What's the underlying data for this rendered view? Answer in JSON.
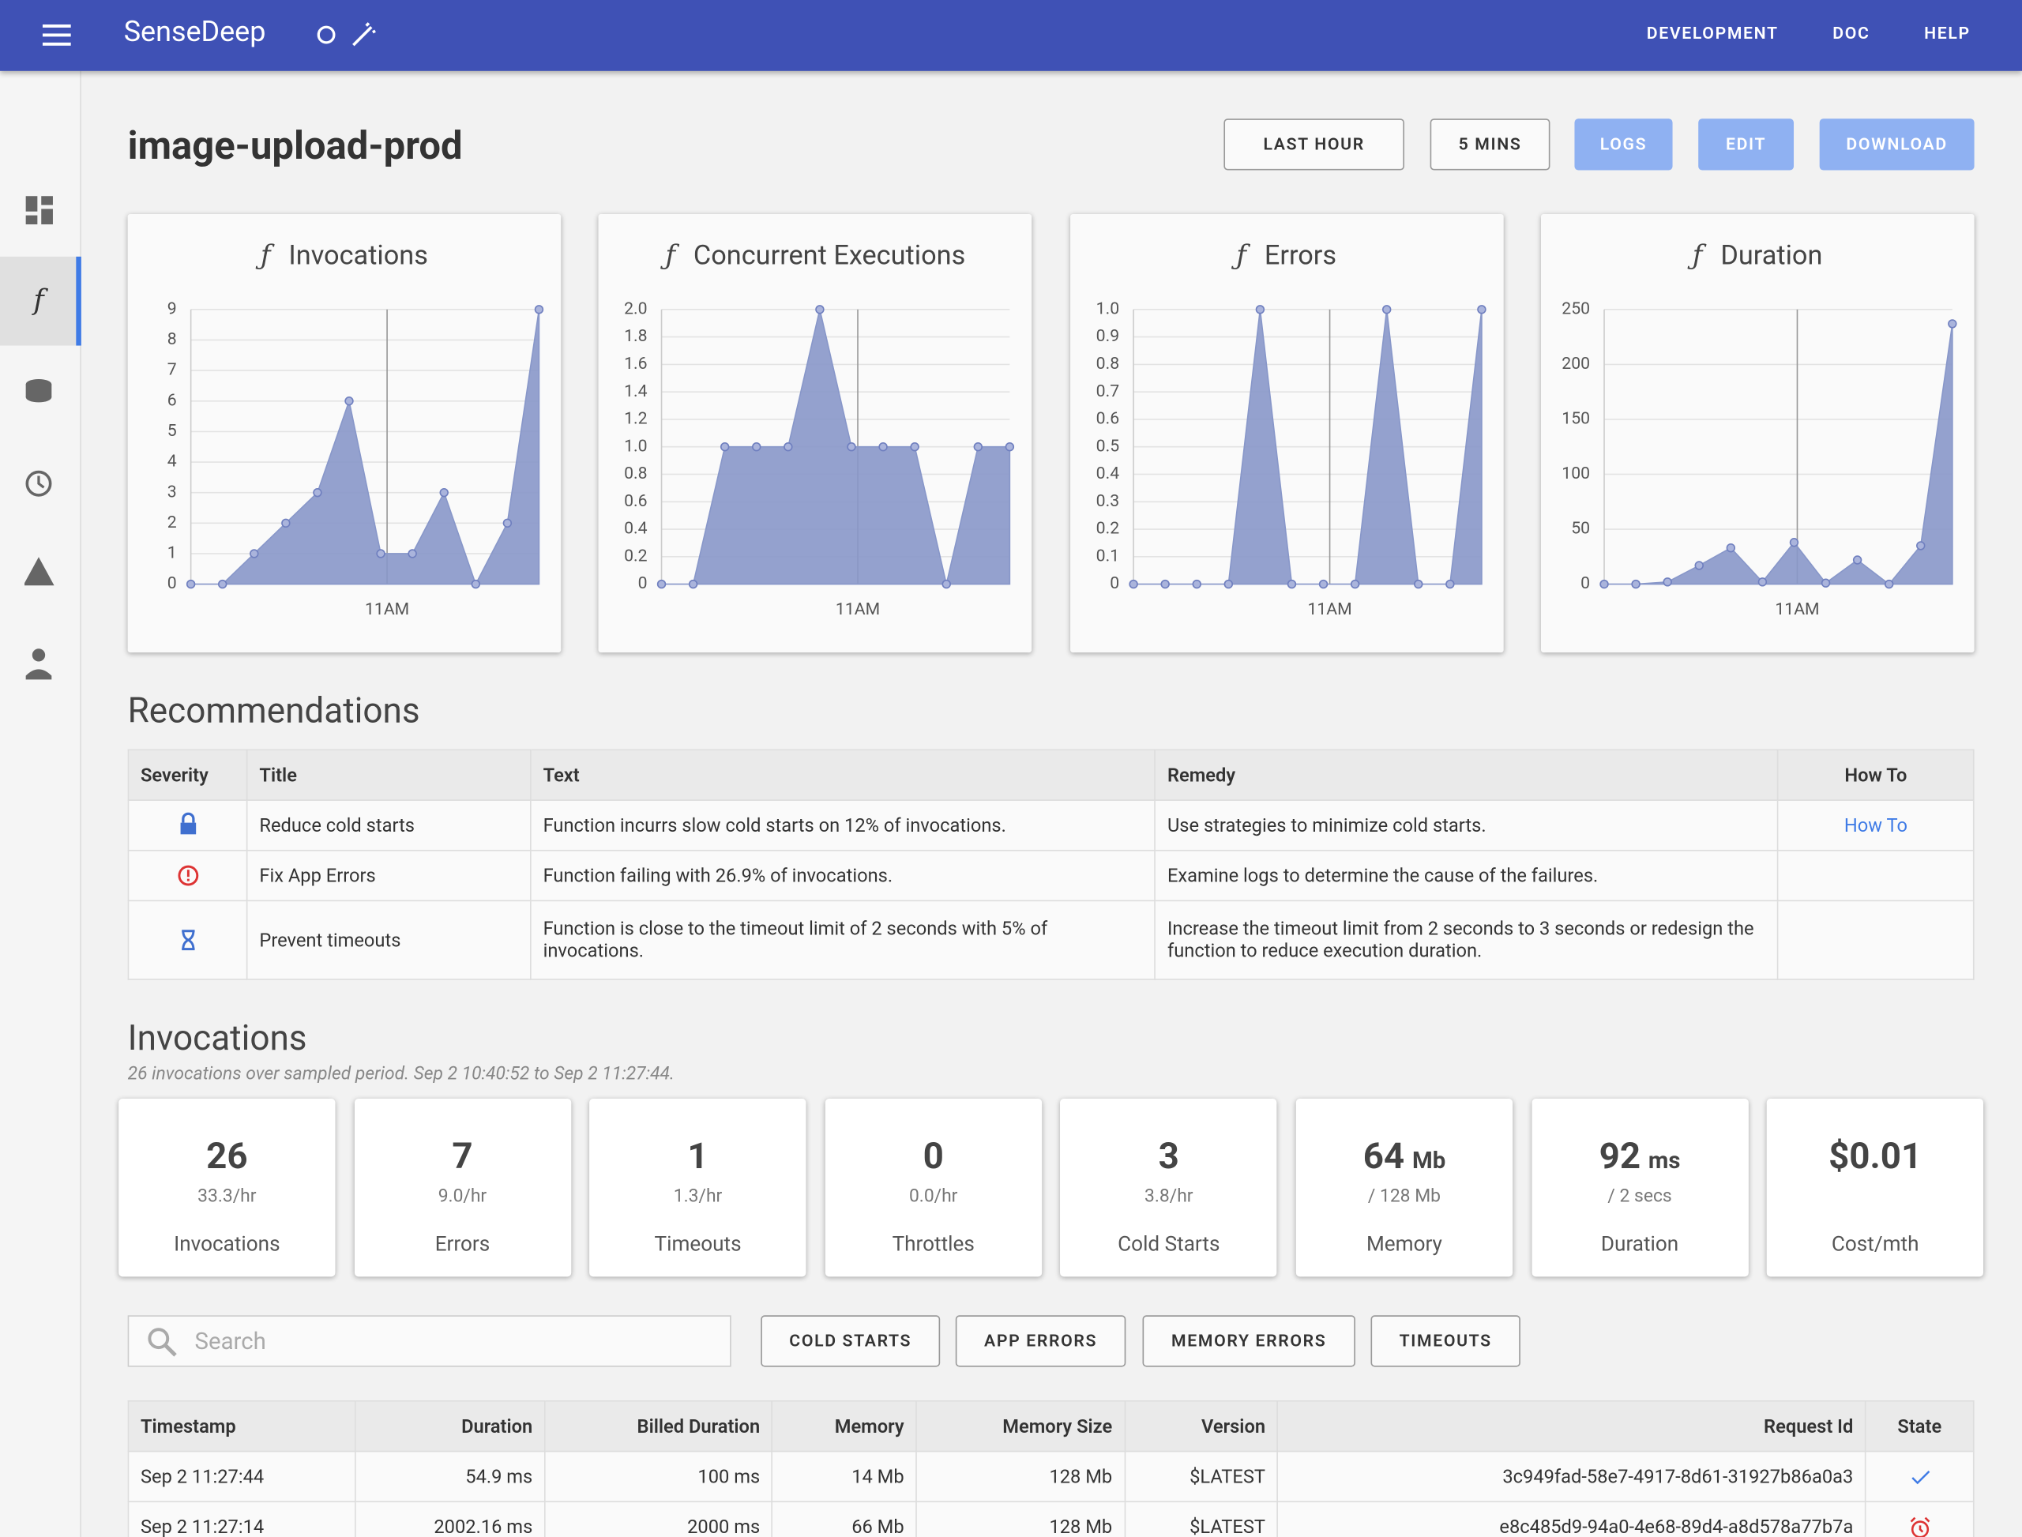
{
  "header": {
    "brand": "SenseDeep",
    "nav": [
      "DEVELOPMENT",
      "DOC",
      "HELP"
    ]
  },
  "page_title": "image-upload-prod",
  "buttons": [
    "LAST HOUR",
    "5 MINS",
    "LOGS",
    "EDIT",
    "DOWNLOAD"
  ],
  "chart_data": [
    {
      "type": "area",
      "title": "Invocations",
      "x": [
        0,
        1,
        2,
        3,
        4,
        5,
        6,
        7,
        8,
        9,
        10,
        11
      ],
      "values": [
        0,
        0,
        1,
        2,
        3,
        6,
        1,
        1,
        3,
        0,
        2,
        9
      ],
      "color": "#8897c9",
      "xlim": [
        0,
        11
      ],
      "xticks": [
        {
          "value": 6.2,
          "label": "11AM"
        }
      ],
      "ylim": [
        0,
        9
      ],
      "yticks": [
        0,
        1,
        2,
        3,
        4,
        5,
        6,
        7,
        8,
        9
      ],
      "grid": true
    },
    {
      "type": "area",
      "title": "Concurrent Executions",
      "x": [
        0,
        1,
        2,
        3,
        4,
        5,
        6,
        7,
        8,
        9,
        10,
        11
      ],
      "values": [
        0,
        0,
        1,
        1,
        1,
        2,
        1,
        1,
        1,
        0,
        1,
        1
      ],
      "color": "#8897c9",
      "xlim": [
        0,
        11
      ],
      "xticks": [
        {
          "value": 6.2,
          "label": "11AM"
        }
      ],
      "ylim": [
        0,
        2
      ],
      "yticks": [
        0,
        0.2,
        0.4,
        0.6,
        0.8,
        {
          "value": 1,
          "label": "1.0"
        },
        1.2,
        1.4,
        1.6,
        1.8,
        {
          "value": 2,
          "label": "2.0"
        }
      ],
      "grid": true
    },
    {
      "type": "area",
      "title": "Errors",
      "x": [
        0,
        1,
        2,
        3,
        4,
        5,
        6,
        7,
        8,
        9,
        10,
        11
      ],
      "values": [
        0,
        0,
        0,
        0,
        1,
        0,
        0,
        0,
        1,
        0,
        0,
        1
      ],
      "color": "#8897c9",
      "xlim": [
        0,
        11
      ],
      "xticks": [
        {
          "value": 6.2,
          "label": "11AM"
        }
      ],
      "ylim": [
        0,
        1
      ],
      "yticks": [
        0,
        0.1,
        0.2,
        0.3,
        0.4,
        0.5,
        0.6,
        0.7,
        0.8,
        0.9,
        {
          "value": 1,
          "label": "1.0"
        }
      ],
      "grid": true
    },
    {
      "type": "area",
      "title": "Duration",
      "x": [
        0,
        1,
        2,
        3,
        4,
        5,
        6,
        7,
        8,
        9,
        10,
        11
      ],
      "values": [
        0,
        0,
        2,
        17,
        33,
        2,
        38,
        1,
        22,
        0,
        35,
        237
      ],
      "color": "#8897c9",
      "xlim": [
        0,
        11
      ],
      "xticks": [
        {
          "value": 6.1,
          "label": "11AM"
        }
      ],
      "ylim": [
        0,
        250
      ],
      "yticks": [
        0,
        50,
        100,
        150,
        200,
        250
      ],
      "grid": true
    }
  ],
  "recommendations": {
    "heading": "Recommendations",
    "columns": [
      "Severity",
      "Title",
      "Text",
      "Remedy",
      "How To"
    ],
    "rows": [
      {
        "title": "Reduce cold starts",
        "text": "Function incurrs slow cold starts on 12% of invocations.",
        "remedy": "Use strategies to minimize cold starts.",
        "howto": "How To"
      },
      {
        "title": "Fix App Errors",
        "text": "Function failing with 26.9% of invocations.",
        "remedy": "Examine logs to determine the cause of the failures."
      },
      {
        "title": "Prevent timeouts",
        "text": "Function is close to the timeout limit of 2 seconds with 5% of invocations.",
        "remedy": "Increase the timeout limit from 2 seconds to 3 seconds or redesign the function to reduce execution duration."
      }
    ]
  },
  "invocations": {
    "heading": "Invocations",
    "subtitle": "26 invocations over sampled period. Sep 2 10:40:52 to Sep 2 11:27:44.",
    "stats": [
      {
        "value": "26",
        "sub": "33.3/hr",
        "label": "Invocations"
      },
      {
        "value": "7",
        "sub": "9.0/hr",
        "label": "Errors"
      },
      {
        "value": "1",
        "sub": "1.3/hr",
        "label": "Timeouts"
      },
      {
        "value": "0",
        "sub": "0.0/hr",
        "label": "Throttles"
      },
      {
        "value": "3",
        "sub": "3.8/hr",
        "label": "Cold Starts"
      },
      {
        "value": "64",
        "unit": "Mb",
        "sub": "/ 128 Mb",
        "label": "Memory"
      },
      {
        "value": "92",
        "unit": "ms",
        "sub": "/ 2 secs",
        "label": "Duration"
      },
      {
        "value": "$0.01",
        "label": "Cost/mth"
      }
    ],
    "search_placeholder": "Search",
    "filters": [
      "COLD STARTS",
      "APP ERRORS",
      "MEMORY ERRORS",
      "TIMEOUTS"
    ],
    "table": {
      "columns": [
        "Timestamp",
        "Duration",
        "Billed Duration",
        "Memory",
        "Memory Size",
        "Version",
        "Request Id",
        "State"
      ],
      "rows": [
        [
          "Sep 2 11:27:44",
          "54.9 ms",
          "100 ms",
          "14 Mb",
          "128 Mb",
          "$LATEST",
          "3c949fad-58e7-4917-8d61-31927b86a0a3"
        ],
        [
          "Sep 2 11:27:14",
          "2002.16 ms",
          "2000 ms",
          "66 Mb",
          "128 Mb",
          "$LATEST",
          "e8c485d9-94a0-4e68-89d4-a8d578a77b7a"
        ]
      ]
    }
  }
}
